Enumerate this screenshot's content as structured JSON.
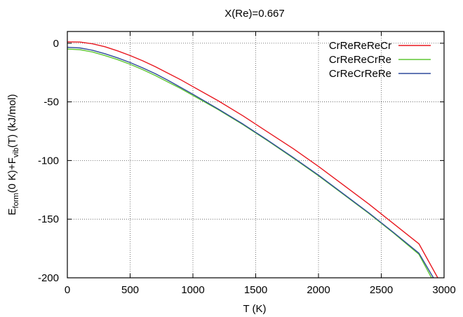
{
  "chart_data": {
    "type": "line",
    "title": "X(Re)=0.667",
    "xlabel": "T (K)",
    "ylabel": {
      "parts": [
        {
          "text": "E",
          "sub": false
        },
        {
          "text": "form",
          "sub": true
        },
        {
          "text": "(0 K)+F",
          "sub": false
        },
        {
          "text": "vib",
          "sub": true
        },
        {
          "text": "(T) (kJ/mol)",
          "sub": false
        }
      ]
    },
    "xlim": [
      0,
      3000
    ],
    "ylim": [
      -200,
      10
    ],
    "xticks": [
      0,
      500,
      1000,
      1500,
      2000,
      2500,
      3000
    ],
    "yticks": [
      0,
      -50,
      -100,
      -150,
      -200
    ],
    "grid": true,
    "legend_position": "top-right",
    "series": [
      {
        "name": "CrReReReCr",
        "color": "#e8171f",
        "x": [
          0,
          100,
          200,
          300,
          400,
          500,
          600,
          700,
          800,
          900,
          1000,
          1200,
          1400,
          1600,
          1800,
          2000,
          2200,
          2400,
          2600,
          2800,
          2950
        ],
        "y": [
          1.2,
          1.0,
          -0.5,
          -3,
          -6.5,
          -10.5,
          -15,
          -20,
          -25.5,
          -31,
          -37,
          -49,
          -62,
          -76,
          -90,
          -105,
          -121,
          -137,
          -154,
          -171,
          -200
        ]
      },
      {
        "name": "CrReReCrRe",
        "color": "#5fc733",
        "x": [
          0,
          100,
          200,
          300,
          400,
          500,
          600,
          700,
          800,
          900,
          1000,
          1200,
          1400,
          1600,
          1800,
          2000,
          2200,
          2400,
          2600,
          2800,
          2900
        ],
        "y": [
          -5,
          -5.5,
          -7.5,
          -10.5,
          -14,
          -18,
          -22.5,
          -27.5,
          -33,
          -38.5,
          -44.5,
          -56.5,
          -69.5,
          -83.5,
          -98,
          -113,
          -129,
          -145,
          -162,
          -180,
          -200
        ]
      },
      {
        "name": "CrReCrReRe",
        "color": "#2f4a9b",
        "x": [
          0,
          100,
          200,
          300,
          400,
          500,
          600,
          700,
          800,
          900,
          1000,
          1200,
          1400,
          1600,
          1800,
          2000,
          2200,
          2400,
          2600,
          2800,
          2915
        ],
        "y": [
          -3.5,
          -4,
          -6,
          -9,
          -12.5,
          -16.5,
          -21,
          -26,
          -31.5,
          -37.5,
          -43.5,
          -56,
          -69,
          -83,
          -97.5,
          -112.5,
          -128.5,
          -144.5,
          -161.5,
          -179,
          -200
        ]
      }
    ]
  }
}
